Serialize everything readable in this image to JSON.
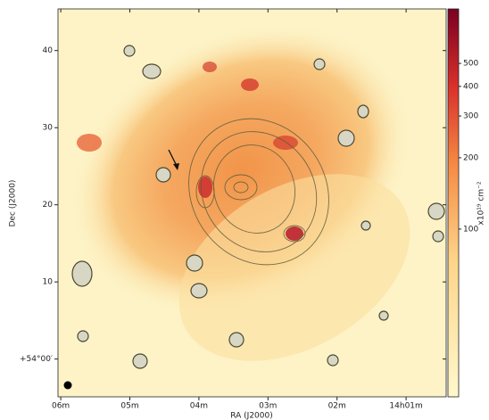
{
  "chart_data": {
    "type": "image",
    "xlabel": "RA (J2000)",
    "ylabel": "Dec (J2000)",
    "xlim": [
      6.04,
      0.42
    ],
    "xticks": [
      {
        "value": 6,
        "label": "06m"
      },
      {
        "value": 5,
        "label": "05m"
      },
      {
        "value": 4,
        "label": "04m"
      },
      {
        "value": 3,
        "label": "03m"
      },
      {
        "value": 2,
        "label": "02m"
      },
      {
        "value": 1,
        "label": "14h01m"
      }
    ],
    "ylim": [
      -4.9,
      45.4
    ],
    "yticks": [
      {
        "value": 0,
        "label": "+54°00′"
      },
      10,
      20,
      30,
      40
    ],
    "colorbar": {
      "label": "x10¹⁹ cm⁻²",
      "scale": "log",
      "lim": [
        19.6,
        849
      ],
      "ticks": [
        100,
        200,
        300,
        400,
        500
      ]
    }
  }
}
